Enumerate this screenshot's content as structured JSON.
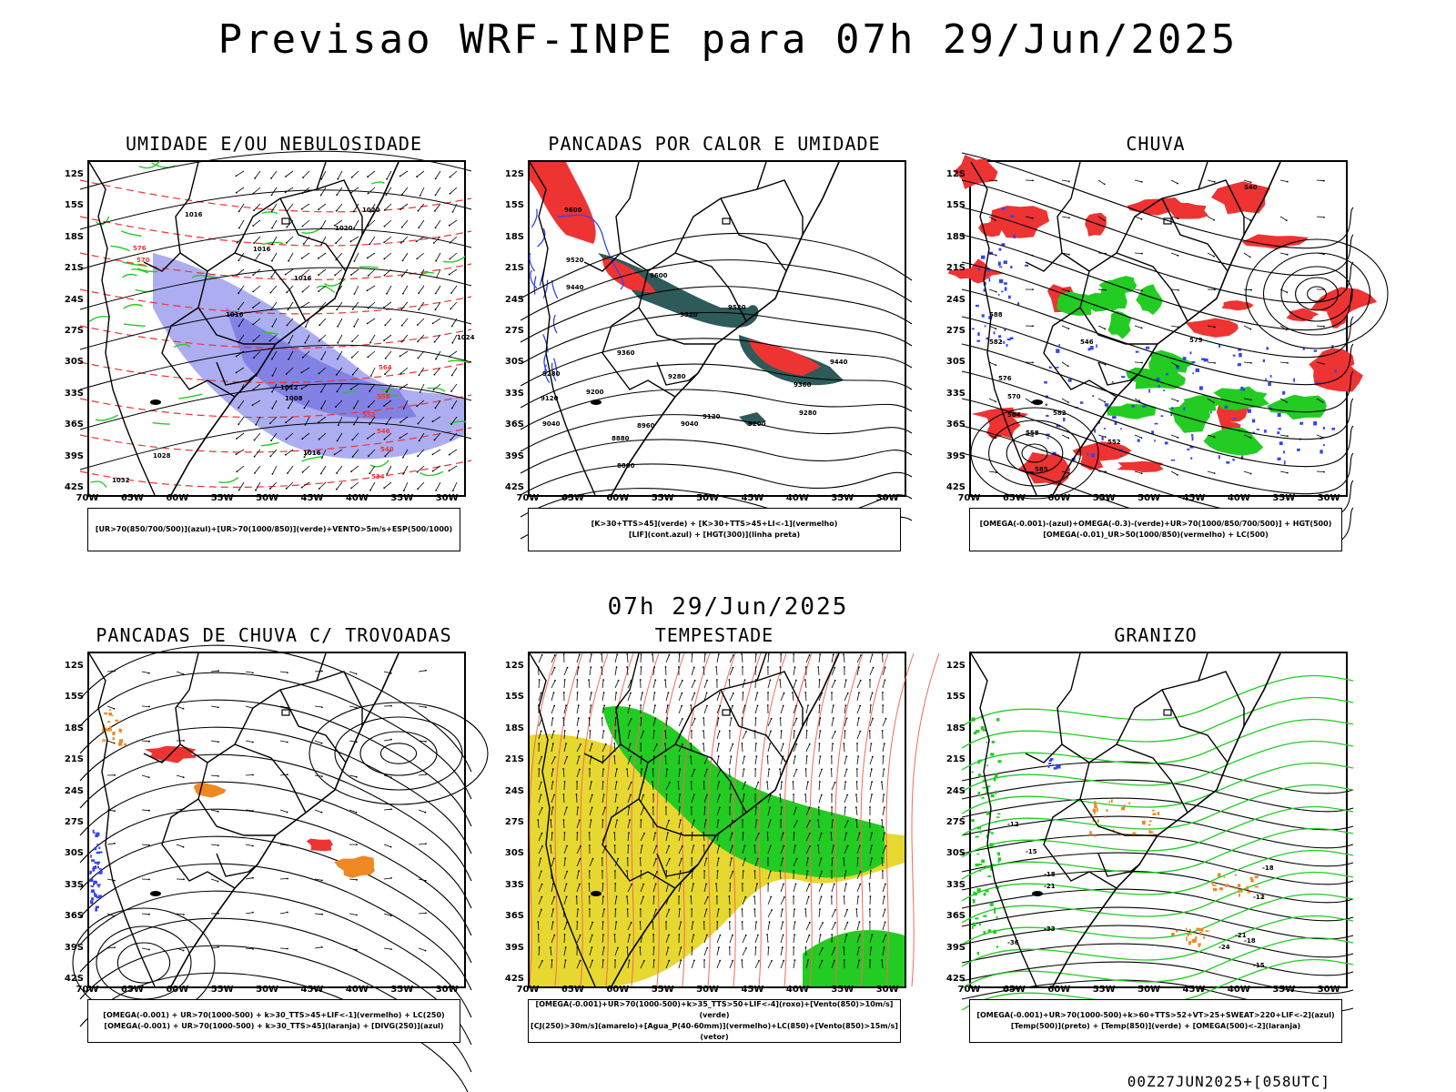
{
  "header": {
    "title": "Previsao WRF-INPE  para 07h 29/Jun/2025",
    "subtitle": "07h 29/Jun/2025",
    "footer": "00Z27JUN2025+[058UTC]"
  },
  "axes": {
    "lat_labels": [
      "12S",
      "15S",
      "18S",
      "21S",
      "24S",
      "27S",
      "30S",
      "33S",
      "36S",
      "39S",
      "42S"
    ],
    "lon_labels": [
      "70W",
      "65W",
      "60W",
      "55W",
      "50W",
      "45W",
      "40W",
      "35W",
      "30W"
    ]
  },
  "panels": [
    {
      "id": "umidade",
      "title": "UMIDADE E/OU NEBULOSIDADE",
      "caption": [
        "[UR>70(850/700/500)](azul)+[UR>70(1000/850)](verde)+VENTO>5m/s+ESP(500/1000)"
      ],
      "labels": [
        "1016",
        "1016",
        "1020",
        "1020",
        "1016",
        "1016",
        "1012",
        "1008",
        "1016",
        "1024",
        "1028",
        "1032",
        "564",
        "558",
        "552",
        "546",
        "540",
        "534",
        "570",
        "576"
      ]
    },
    {
      "id": "pancadas-calor",
      "title": "PANCADAS POR CALOR E UMIDADE",
      "caption": [
        "[K>30+TTS>45](verde) + [K>30+TTS>45+LI<-1](vermelho)",
        "[LIF](cont.azul) + [HGT(300)](linha preta)"
      ],
      "labels": [
        "9600",
        "9520",
        "9440",
        "9520",
        "9360",
        "9280",
        "9200",
        "9120",
        "9040",
        "8960",
        "8880",
        "8800",
        "9600",
        "9520",
        "9440",
        "9360",
        "9280",
        "9200",
        "9120",
        "9040",
        "9280"
      ]
    },
    {
      "id": "chuva",
      "title": "CHUVA",
      "caption": [
        "[OMEGA(-0.001)-(azul)+OMEGA(-0.3)-(verde)+UR>70(1000/850/700/500)] + HGT(500)",
        "[OMEGA(-0.01)_UR>50(1000/850)(vermelho) + LC(500)"
      ],
      "labels": [
        "588",
        "582",
        "576",
        "570",
        "564",
        "558",
        "552",
        "546",
        "540",
        "579",
        "582",
        "585"
      ]
    },
    {
      "id": "trovoadas",
      "title": "PANCADAS DE CHUVA C/ TROVOADAS",
      "caption": [
        "[OMEGA(-0.001) + UR>70(1000-500) + k>30_TTS>45+LIF<-1](vermelho) + LC(250)",
        "[OMEGA(-0.001) + UR>70(1000-500) + k>30_TTS>45](laranja) + [DIVG(250)](azul)"
      ],
      "labels": []
    },
    {
      "id": "tempestade",
      "title": "TEMPESTADE",
      "caption": [
        "[OMEGA(-0.001)+UR>70(1000-500)+k>35_TTS>50+LIF<-4](roxo)+[Vento(850)>10m/s](verde)",
        "[CJ(250)>30m/s](amarelo)+[Agua_P(40-60mm)](vermelho)+LC(850)+[Vento(850)>15m/s](vetor)"
      ],
      "labels": []
    },
    {
      "id": "granizo",
      "title": "GRANIZO",
      "caption": [
        "[OMEGA(-0.001)+UR>70(1000-500)+k>60+TTS>52+VT>25+SWEAT>220+LIF<-2](azul)",
        "[Temp(500)](preto) + [Temp(850)](verde) + [OMEGA(500)<-2](laranja)"
      ],
      "labels": [
        "-12",
        "-15",
        "-18",
        "-21",
        "-33",
        "-36",
        "-18",
        "-21",
        "-24",
        "-15",
        "-12",
        "-18"
      ]
    }
  ],
  "colors": {
    "blue": "#3344ee",
    "green": "#22cc22",
    "red": "#ee3333",
    "orange": "#ee8822",
    "yellow": "#e6d830",
    "lavender": "#9999ee",
    "teal": "#2e5a5a",
    "salmon": "#f06a5a"
  }
}
